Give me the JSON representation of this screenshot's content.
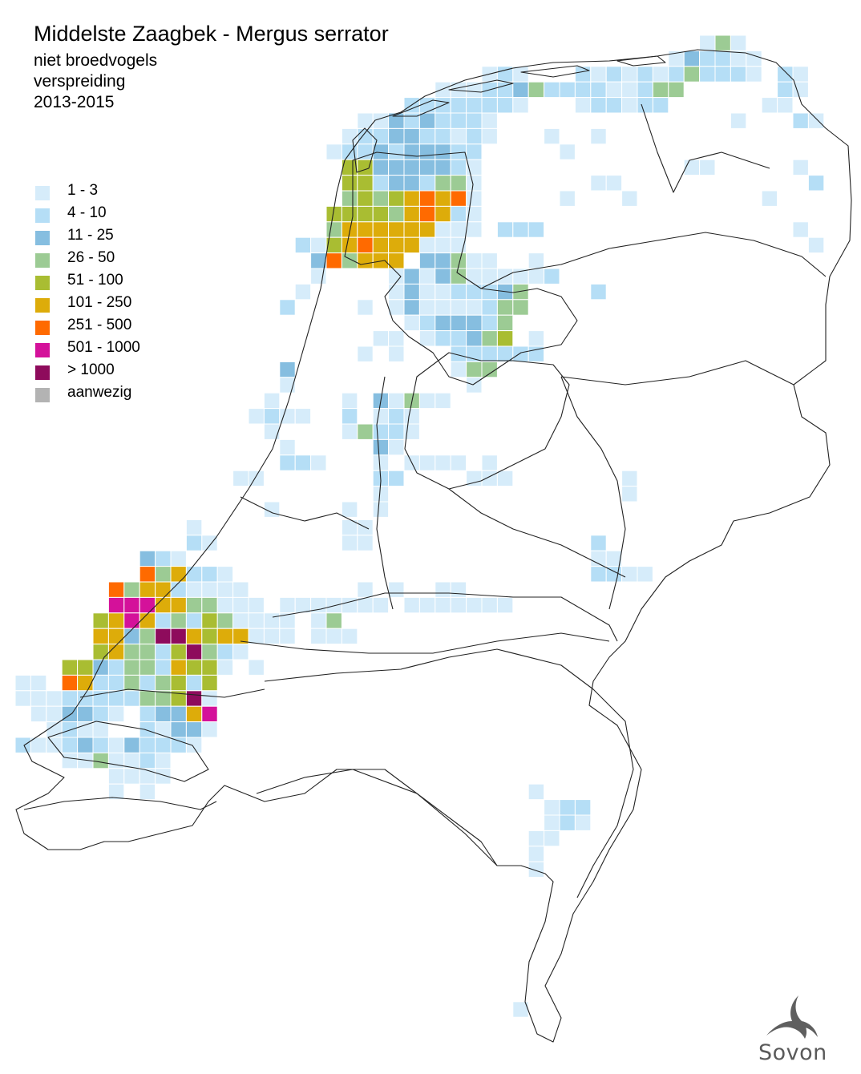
{
  "header": {
    "title": "Middelste Zaagbek - Mergus serrator",
    "subtitle_lines": [
      "niet broedvogels",
      "verspreiding",
      "2013-2015"
    ]
  },
  "legend": {
    "items": [
      {
        "label": "1 - 3",
        "color": "#d6ecfa"
      },
      {
        "label": "4 - 10",
        "color": "#b5def6"
      },
      {
        "label": "11 - 25",
        "color": "#86bee0"
      },
      {
        "label": "26 - 50",
        "color": "#9ccb94"
      },
      {
        "label": "51 - 100",
        "color": "#a9bd32"
      },
      {
        "label": "101 - 250",
        "color": "#ddac0a"
      },
      {
        "label": "251 - 500",
        "color": "#ff6a00"
      },
      {
        "label": "501 - 1000",
        "color": "#d4119a"
      },
      {
        "label": "> 1000",
        "color": "#8e0b5c"
      },
      {
        "label": "aanwezig",
        "color": "#b3b3b3"
      }
    ]
  },
  "logo": {
    "text": "Sovon",
    "icon": "swallow-icon"
  }
}
